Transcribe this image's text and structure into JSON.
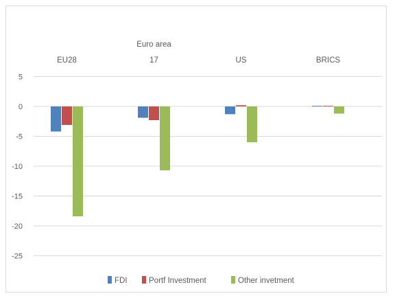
{
  "chart_data": {
    "type": "bar",
    "title": "",
    "xlabel": "",
    "ylabel": "",
    "categories": [
      {
        "lines": [
          "EU28"
        ]
      },
      {
        "lines": [
          "Euro area",
          "17"
        ]
      },
      {
        "lines": [
          "US"
        ]
      },
      {
        "lines": [
          "BRICS"
        ]
      }
    ],
    "series": [
      {
        "name": "FDI",
        "color": "#4f81bd",
        "values": [
          -4.2,
          -1.9,
          -1.3,
          0.1
        ]
      },
      {
        "name": "Portf Investment",
        "color": "#c0504d",
        "values": [
          -3.1,
          -2.3,
          0.2,
          0.1
        ]
      },
      {
        "name": "Other invetment",
        "color": "#9bbb59",
        "values": [
          -18.4,
          -10.7,
          -6.0,
          -1.2
        ]
      }
    ],
    "ylim": [
      -30,
      5
    ],
    "yticks": [
      5,
      0,
      -5,
      -10,
      -15,
      -20,
      -25
    ],
    "grid": true,
    "legend": "bottom",
    "category_labels_position": "top"
  }
}
